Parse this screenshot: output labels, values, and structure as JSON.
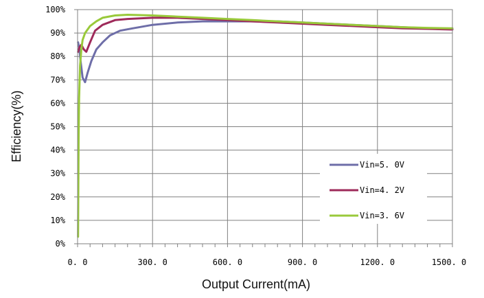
{
  "chart_data": {
    "type": "line",
    "title": "",
    "xlabel": "Output Current(mA)",
    "ylabel": "Efficiency(%)",
    "xlim": [
      0,
      1500
    ],
    "ylim": [
      0,
      100
    ],
    "x_ticks": [
      0,
      300,
      600,
      900,
      1200,
      1500
    ],
    "x_tick_labels": [
      "0. 0",
      "300. 0",
      "600. 0",
      "900. 0",
      "1200. 0",
      "1500. 0"
    ],
    "y_ticks": [
      0,
      10,
      20,
      30,
      40,
      50,
      60,
      70,
      80,
      90,
      100
    ],
    "y_tick_labels": [
      "0%",
      "10%",
      "20%",
      "30%",
      "40%",
      "50%",
      "60%",
      "70%",
      "80%",
      "90%",
      "100%"
    ],
    "grid": true,
    "legend_position": "bottom-right",
    "series": [
      {
        "name": "Vin=5. 0V",
        "color": "#6E6EA8",
        "x": [
          2,
          6,
          12,
          20,
          30,
          40,
          55,
          75,
          100,
          130,
          170,
          220,
          300,
          400,
          500,
          600,
          700,
          800,
          900,
          1000,
          1100,
          1200,
          1300,
          1400,
          1500
        ],
        "y": [
          86,
          84,
          78,
          71,
          69,
          73,
          78,
          83,
          86,
          89,
          91,
          92,
          93.5,
          94.5,
          95,
          95,
          95,
          95,
          94.5,
          94,
          93.5,
          93,
          92.5,
          92,
          91.8
        ]
      },
      {
        "name": "Vin=4. 2V",
        "color": "#9E2A5A",
        "x": [
          2,
          8,
          15,
          25,
          35,
          50,
          70,
          100,
          150,
          200,
          300,
          400,
          500,
          600,
          700,
          800,
          900,
          1000,
          1100,
          1200,
          1300,
          1400,
          1500
        ],
        "y": [
          82,
          84,
          85,
          83,
          82,
          86,
          91,
          93.5,
          95.5,
          96,
          96.5,
          96.5,
          96,
          95.5,
          95,
          94.5,
          94,
          93.5,
          93,
          92.5,
          92,
          91.8,
          91.5
        ]
      },
      {
        "name": "Vin=3. 6V",
        "color": "#99C93A",
        "x": [
          2,
          4,
          6,
          10,
          15,
          20,
          30,
          50,
          75,
          100,
          150,
          200,
          300,
          400,
          500,
          600,
          700,
          800,
          900,
          1000,
          1100,
          1200,
          1300,
          1400,
          1500
        ],
        "y": [
          3,
          45,
          62,
          76,
          83,
          87,
          90,
          93,
          95,
          96.5,
          97.5,
          97.8,
          97.5,
          97,
          96.5,
          96,
          95.5,
          95,
          94.5,
          94,
          93.5,
          93,
          92.5,
          92.2,
          92
        ]
      }
    ]
  }
}
